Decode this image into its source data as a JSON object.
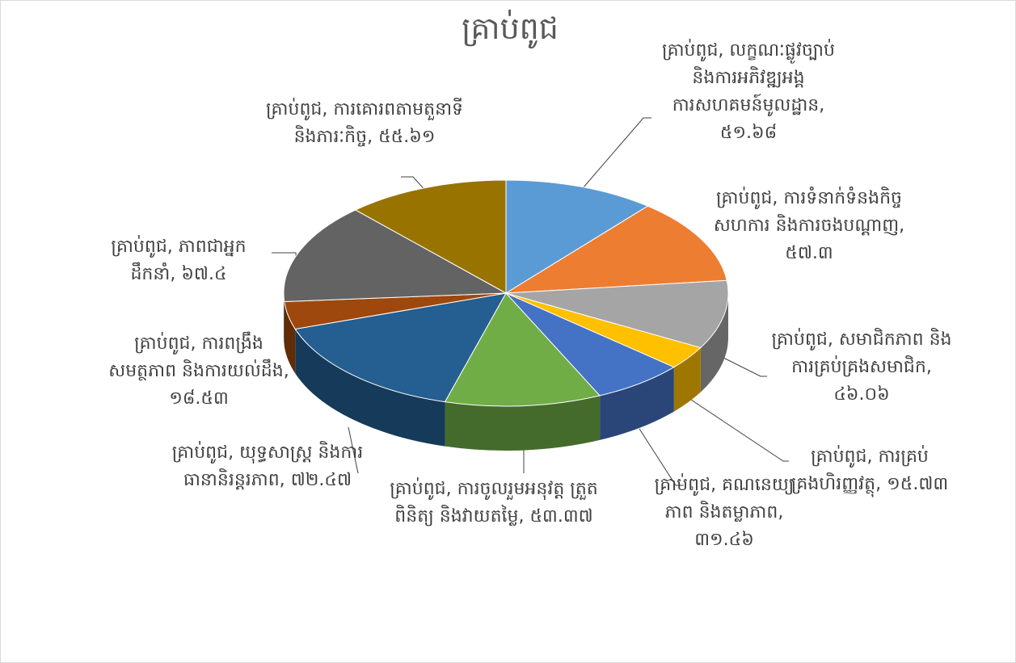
{
  "chart_data": {
    "type": "pie",
    "title": "គ្រាប់ពូជ",
    "categories": [
      "គ្រាប់ពូជ, លក្ខណៈផ្លូវច្បាប់និងការអភិវឌ្ឍអង្គការសហគមន៍មូលដ្ឋាន,",
      "គ្រាប់ពូជ, ការទំនាក់ទំនងកិច្ចសហការ និងការចងបណ្ដាញ,",
      "គ្រាប់ពូជ, សមាជិកភាព និងការគ្រប់គ្រងសមាជិក,",
      "គ្រាប់ពូជ, ការគ្រប់គ្រងហិរញ្ញវត្ថុ,",
      "គ្រាប់ពូជ, គណនេយ្យភាព និងតម្លាភាព,",
      "គ្រាប់ពូជ, ការចូលរួមអនុវត្ត ត្រួតពិនិត្យ និងវាយតម្លៃ,",
      "គ្រាប់ពូជ, យុទ្ធសាស្ត្រ និងការធានានិរន្តរភាព,",
      "គ្រាប់ពូជ, ការពង្រឹងសមត្ថភាព និងការយល់ដឹង,",
      "គ្រាប់ពូជ, ភាពជាអ្នកដឹកនាំ,",
      "គ្រាប់ពូជ, ការគោរពតាមតួនាទី និងភារៈកិច្ច,"
    ],
    "values": [
      51.68,
      57.3,
      46.06,
      15.73,
      31.46,
      53.37,
      72.47,
      18.53,
      67.4,
      55.61
    ],
    "value_labels": [
      "៥១.៦៨",
      "៥៧.៣",
      "៤៦.០៦",
      "១៥.៧៣",
      "៣១.៤៦",
      "៥៣.៣៧",
      "៧២.៤៧",
      "១៨.៥៣",
      "៦៧.៤",
      "៥៥.៦១"
    ],
    "colors": [
      "#5b9bd5",
      "#ed7d31",
      "#a5a5a5",
      "#ffc000",
      "#4472c4",
      "#70ad47",
      "#255e91",
      "#9e480e",
      "#636363",
      "#997300"
    ]
  }
}
